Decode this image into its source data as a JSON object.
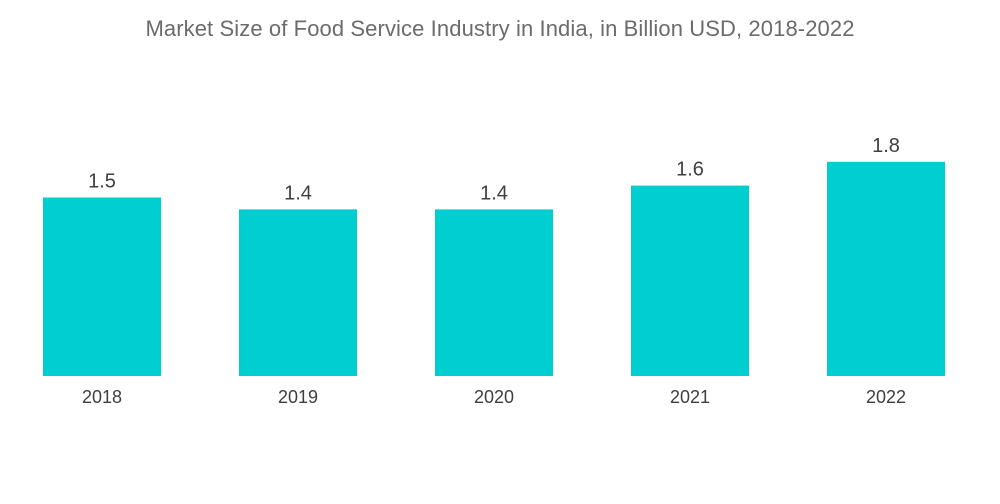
{
  "chart_data": {
    "type": "bar",
    "title": "Market Size of Food Service Industry in India, in Billion USD, 2018-2022",
    "categories": [
      "2018",
      "2019",
      "2020",
      "2021",
      "2022"
    ],
    "values": [
      1.5,
      1.4,
      1.4,
      1.6,
      1.8
    ],
    "data_labels": [
      "1.5",
      "1.4",
      "1.4",
      "1.6",
      "1.8"
    ],
    "xlabel": "",
    "ylabel": "",
    "ylim": [
      0,
      2.0
    ],
    "grid": false,
    "legend": "none",
    "bar_color": "#00ced1"
  }
}
